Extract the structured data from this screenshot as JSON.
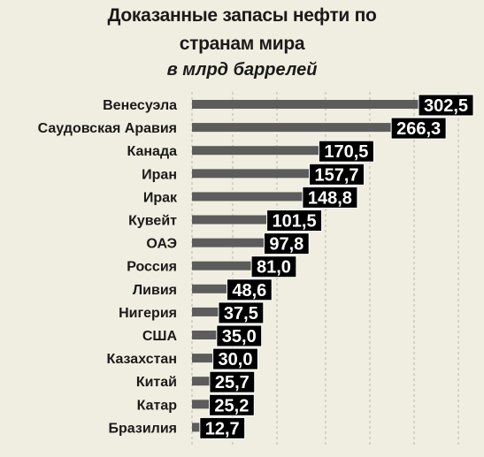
{
  "chart_data": {
    "type": "bar",
    "orientation": "horizontal",
    "title_lines": [
      "Доказанные запасы нефти по",
      "странам мира"
    ],
    "subtitle": "в млрд баррелей",
    "categories": [
      "Венесуэла",
      "Саудовская Аравия",
      "Канада",
      "Иран",
      "Ирак",
      "Кувейт",
      "ОАЭ",
      "Россия",
      "Ливия",
      "Нигерия",
      "США",
      "Казахстан",
      "Китай",
      "Катар",
      "Бразилия"
    ],
    "values": [
      302.5,
      266.3,
      170.5,
      157.7,
      148.8,
      101.5,
      97.8,
      81.0,
      48.6,
      37.5,
      35.0,
      30.0,
      25.7,
      25.2,
      12.7
    ],
    "value_labels": [
      "302,5",
      "266,3",
      "170,5",
      "157,7",
      "148,8",
      "101,5",
      "97,8",
      "81,0",
      "48,6",
      "37,5",
      "35,0",
      "30,0",
      "25,7",
      "25,2",
      "12,7"
    ],
    "xlim": [
      0,
      302.5
    ],
    "grid": "vertical-dashed",
    "bar_color": "#5c5c5c",
    "label_box_color": "#000000",
    "label_text_color": "#ffffff",
    "label_border_color": "#ffffff",
    "background_color": "#efeee0"
  }
}
